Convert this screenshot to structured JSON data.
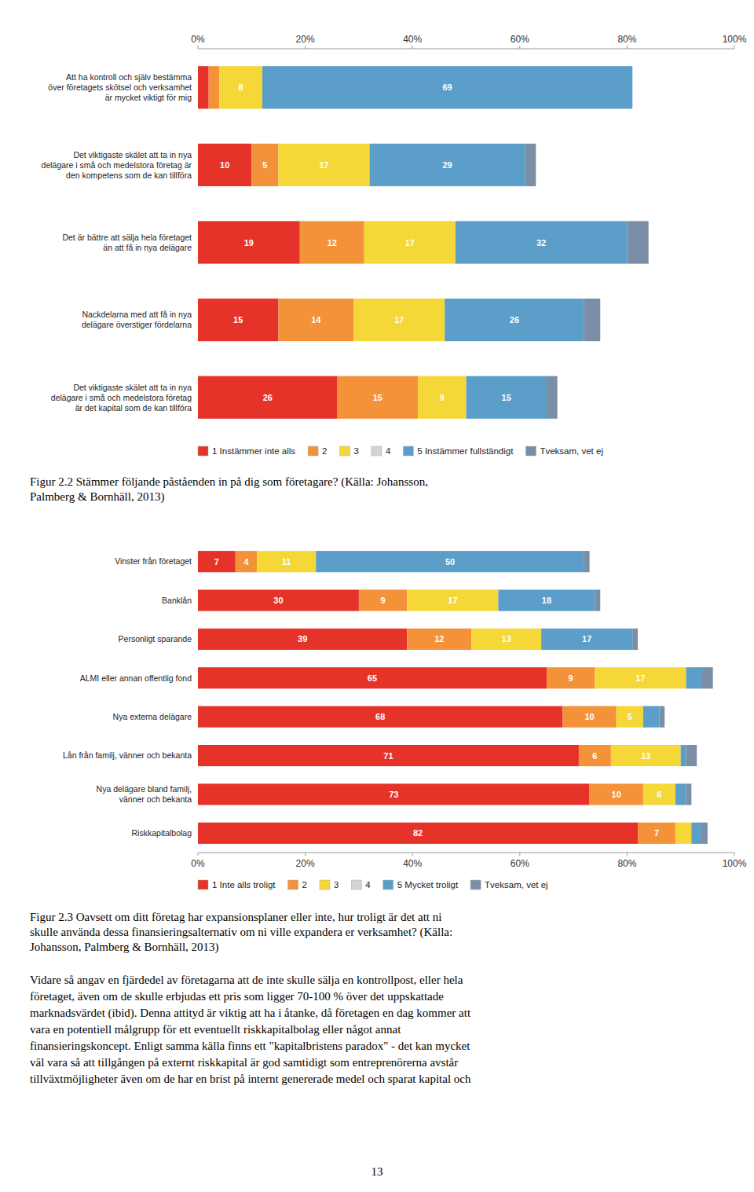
{
  "chart_data": [
    {
      "type": "bar",
      "orientation": "horizontal",
      "stacked": true,
      "categories": [
        "Att ha kontroll och själv bestämma\növer företagets skötsel och verksamhet\när mycket viktigt för mig",
        "Det viktigaste skälet att ta in nya\ndelägare i små och medelstora företag är\nden kompetens som de kan tillföra",
        "Det är bättre att sälja hela företaget\nän att få in nya delägare",
        "Nackdelarna med att få in nya\ndelägare överstiger fördelarna",
        "Det viktigaste skälet att ta in nya\ndelägare i små och medelstora företag\när det kapital som de kan tillföra"
      ],
      "series": [
        {
          "name": "1 Instämmer inte alls",
          "color": "#e63329",
          "values": [
            2,
            10,
            19,
            15,
            26
          ],
          "value_labels": [
            null,
            "10",
            "19",
            "15",
            "26"
          ]
        },
        {
          "name": "2",
          "color": "#f4923a",
          "values": [
            2,
            5,
            12,
            14,
            15
          ],
          "value_labels": [
            null,
            "5",
            "12",
            "14",
            "15"
          ]
        },
        {
          "name": "3",
          "color": "#f5d838",
          "values": [
            8,
            17,
            17,
            17,
            9
          ],
          "value_labels": [
            "8",
            "17",
            "17",
            "17",
            "9"
          ]
        },
        {
          "name": "4",
          "color": "#d3d3d3",
          "values": [
            0,
            0,
            0,
            0,
            0
          ],
          "value_labels": [
            null,
            null,
            null,
            null,
            null
          ]
        },
        {
          "name": "5 Instämmer fullständigt",
          "color": "#5b9ec9",
          "values": [
            69,
            29,
            32,
            26,
            15
          ],
          "value_labels": [
            "69",
            "29",
            "32",
            "26",
            "15"
          ]
        },
        {
          "name": "Tveksam, vet ej",
          "color": "#7a8fa6",
          "values": [
            0,
            2,
            4,
            3,
            2
          ],
          "value_labels": [
            null,
            null,
            null,
            null,
            null
          ]
        }
      ],
      "xlim": [
        0,
        100
      ],
      "xticks": [
        {
          "value": 0,
          "label": "0%"
        },
        {
          "value": 20,
          "label": "20%"
        },
        {
          "value": 40,
          "label": "40%"
        },
        {
          "value": 60,
          "label": "60%"
        },
        {
          "value": 80,
          "label": "80%"
        },
        {
          "value": 100,
          "label": "100%"
        }
      ],
      "grid": false,
      "legend": "bottom",
      "data_labels": true,
      "annotations": [
        "Figur 2.2 Stämmer följande påståenden in på dig som företagare? (Källa: Johansson,",
        "Palmberg & Bornhäll, 2013)"
      ]
    },
    {
      "type": "bar",
      "orientation": "horizontal",
      "stacked": true,
      "categories": [
        "Vinster från företaget",
        "Banklån",
        "Personligt sparande",
        "ALMI eller annan offentlig fond",
        "Nya externa delägare",
        "Lån från familj, vänner och bekanta",
        "Nya delägare bland familj,\nvänner och bekanta",
        "Riskkapitalbolag"
      ],
      "series": [
        {
          "name": "1 Inte alls troligt",
          "color": "#e63329",
          "values": [
            7,
            30,
            39,
            65,
            68,
            71,
            73,
            82
          ],
          "value_labels": [
            "7",
            "30",
            "39",
            "65",
            "68",
            "71",
            "73",
            "82"
          ]
        },
        {
          "name": "2",
          "color": "#f4923a",
          "values": [
            4,
            9,
            12,
            9,
            10,
            6,
            10,
            7
          ],
          "value_labels": [
            "4",
            "9",
            "12",
            "9",
            "10",
            "6",
            "10",
            "7"
          ]
        },
        {
          "name": "3",
          "color": "#f5d838",
          "values": [
            11,
            17,
            13,
            17,
            5,
            13,
            6,
            3
          ],
          "value_labels": [
            "11",
            "17",
            "13",
            "17",
            "5",
            "13",
            "6",
            null
          ]
        },
        {
          "name": "4",
          "color": "#d3d3d3",
          "values": [
            0,
            0,
            0,
            0,
            0,
            0,
            0,
            0
          ],
          "value_labels": [
            null,
            null,
            null,
            null,
            null,
            null,
            null,
            null
          ]
        },
        {
          "name": "5 Mycket troligt",
          "color": "#5b9ec9",
          "values": [
            50,
            18,
            17,
            3,
            3,
            1,
            2,
            2
          ],
          "value_labels": [
            "50",
            "18",
            "17",
            null,
            null,
            null,
            null,
            null
          ]
        },
        {
          "name": "Tveksam, vet ej",
          "color": "#7a8fa6",
          "values": [
            1,
            1,
            1,
            2,
            1,
            2,
            1,
            1
          ],
          "value_labels": [
            null,
            null,
            null,
            null,
            null,
            null,
            null,
            null
          ]
        }
      ],
      "xlim": [
        0,
        100
      ],
      "xticks": [
        {
          "value": 0,
          "label": "0%"
        },
        {
          "value": 20,
          "label": "20%"
        },
        {
          "value": 40,
          "label": "40%"
        },
        {
          "value": 60,
          "label": "60%"
        },
        {
          "value": 80,
          "label": "80%"
        },
        {
          "value": 100,
          "label": "100%"
        }
      ],
      "grid": false,
      "legend": "bottom",
      "data_labels": true,
      "annotations": [
        "Figur 2.3 Oavsett om ditt företag har expansionsplaner eller inte, hur troligt är det att ni",
        "skulle använda dessa finansieringsalternativ om ni ville expandera er verksamhet? (Källa:",
        "Johansson, Palmberg & Bornhäll, 2013)"
      ]
    }
  ],
  "body_text": [
    "Vidare så angav en fjärdedel av företagarna att de inte skulle sälja en kontrollpost, eller hela",
    "företaget, även om de skulle erbjudas ett pris som ligger 70-100 % över det uppskattade",
    "marknadsvärdet (ibid). Denna attityd är viktig att ha i åtanke, då företagen en dag kommer att",
    "vara en potentiell målgrupp för ett eventuellt riskkapitalbolag eller något annat",
    "finansieringskoncept. Enligt samma källa finns ett \"kapitalbristens paradox\" - det kan mycket",
    "väl vara så att tillgången på externt riskkapital är god samtidigt som entreprenörerna avstår",
    "tillväxtmöjligheter även om de har en brist på internt genererade medel och sparat kapital och"
  ],
  "page_number": "13"
}
